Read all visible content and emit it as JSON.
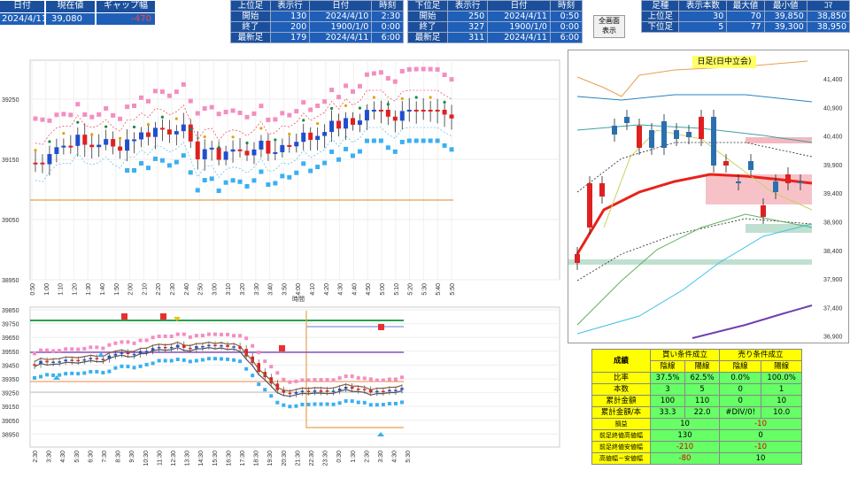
{
  "top_left": {
    "headers": [
      "日付",
      "現在値",
      "ギャップ幅"
    ],
    "values": [
      "2024/4/11",
      "39,080",
      "-470"
    ]
  },
  "upper_table": {
    "headers": [
      "上位足",
      "表示行",
      "日付",
      "時刻"
    ],
    "rows": [
      [
        "開始",
        "130",
        "2024/4/10",
        "2:30"
      ],
      [
        "終了",
        "200",
        "1900/1/0",
        "0:00"
      ],
      [
        "最新足",
        "179",
        "2024/4/11",
        "6:00"
      ]
    ]
  },
  "lower_table": {
    "headers": [
      "下位足",
      "表示行",
      "日付",
      "時刻"
    ],
    "rows": [
      [
        "開始",
        "250",
        "2024/4/11",
        "0:50"
      ],
      [
        "終了",
        "327",
        "1900/1/0",
        "0:00"
      ],
      [
        "最新足",
        "311",
        "2024/4/11",
        "6:00"
      ]
    ]
  },
  "fullscreen_button": {
    "label_line1": "全画面",
    "label_line2": "表示"
  },
  "stats_table": {
    "headers": [
      "足種",
      "表示本数",
      "最大値",
      "最小値",
      "ｺﾏ"
    ],
    "rows": [
      [
        "上位足",
        "30",
        "70",
        "39,850",
        "38,850"
      ],
      [
        "下位足",
        "5",
        "77",
        "39,300",
        "38,950"
      ]
    ]
  },
  "daily_chart": {
    "title": "日足(日中立会)",
    "y_ticks": [
      "41,400",
      "40,900",
      "40,400",
      "39,900",
      "39,400",
      "38,900",
      "38,400",
      "37,900",
      "37,400",
      "36,900"
    ]
  },
  "chart_upper": {
    "y_ticks": [
      "39250",
      "39150",
      "39050",
      "38950"
    ],
    "x_ticks": [
      "0:50",
      "1:00",
      "1:10",
      "1:20",
      "1:30",
      "1:40",
      "1:50",
      "2:00",
      "2:10",
      "2:20",
      "2:30",
      "2:40",
      "2:50",
      "3:00",
      "3:10",
      "3:20",
      "3:30",
      "3:40",
      "3:50",
      "4:00",
      "4:10",
      "4:20",
      "4:30",
      "4:40",
      "4:50",
      "5:00",
      "5:10",
      "5:20",
      "5:30",
      "5:40",
      "5:50"
    ]
  },
  "chart_lower": {
    "y_ticks": [
      "39850",
      "39750",
      "39650",
      "39550",
      "39450",
      "39350",
      "39250",
      "39150",
      "39050",
      "38950"
    ],
    "x_ticks": [
      "2:30",
      "3:30",
      "4:30",
      "5:30",
      "6:30",
      "7:30",
      "8:30",
      "9:30",
      "10:30",
      "11:30",
      "12:30",
      "13:30",
      "14:30",
      "15:30",
      "16:30",
      "17:30",
      "18:30",
      "19:30",
      "20:30",
      "21:30",
      "22:30",
      "23:30",
      "0:30",
      "1:30",
      "2:30",
      "3:30",
      "4:30",
      "5:30"
    ]
  },
  "results": {
    "title": "成績",
    "buy_header": "買い条件成立",
    "sell_header": "売り条件成立",
    "sub_headers": [
      "陰線",
      "陽線",
      "陰線",
      "陽線"
    ],
    "rows": [
      {
        "label": "比率",
        "values": [
          "37.5%",
          "62.5%",
          "0.0%",
          "100.0%"
        ]
      },
      {
        "label": "本数",
        "values": [
          "3",
          "5",
          "0",
          "1"
        ]
      },
      {
        "label": "累計金額",
        "values": [
          "100",
          "110",
          "0",
          "10"
        ]
      },
      {
        "label": "累計金額/本",
        "values": [
          "33.3",
          "22.0",
          "#DIV/0!",
          "10.0"
        ]
      }
    ],
    "rows2": [
      {
        "label": "損益",
        "buy": "10",
        "sell": "-10"
      },
      {
        "label": "前足終値高値幅",
        "buy": "130",
        "sell": "0"
      },
      {
        "label": "前足終値安値幅",
        "buy": "-210",
        "sell": "-10"
      },
      {
        "label": "高値幅－安値幅",
        "buy": "-80",
        "sell": "10"
      }
    ]
  },
  "colors": {
    "header_blue": "#1b4f9c",
    "cell_blue": "#1f5fb8",
    "result_yellow": "#ffff00",
    "result_green": "#66ff66",
    "ma_red": "#e8221b"
  }
}
